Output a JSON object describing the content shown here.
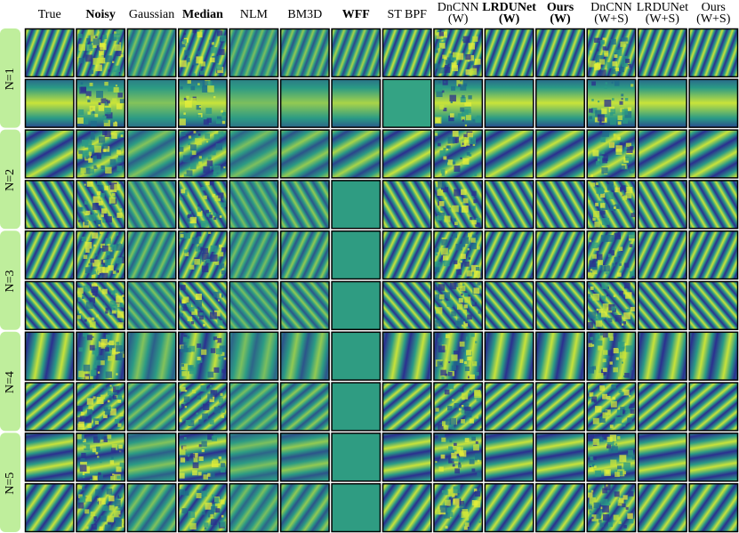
{
  "columns": [
    [
      "True"
    ],
    [
      "Noisy"
    ],
    [
      "Gaussian"
    ],
    [
      "Median"
    ],
    [
      "NLM"
    ],
    [
      "BM3D"
    ],
    [
      "WFF"
    ],
    [
      "ST BPF"
    ],
    [
      "DnCNN",
      "(W)"
    ],
    [
      "LRDUNet",
      "(W)"
    ],
    [
      "Ours",
      "(W)"
    ],
    [
      "DnCNN",
      "(W+S)"
    ],
    [
      "LRDUNet",
      "(W+S)"
    ],
    [
      "Ours",
      "(W+S)"
    ]
  ],
  "row_groups": [
    "N=1",
    "N=2",
    "N=3",
    "N=4",
    "N=5"
  ]
}
